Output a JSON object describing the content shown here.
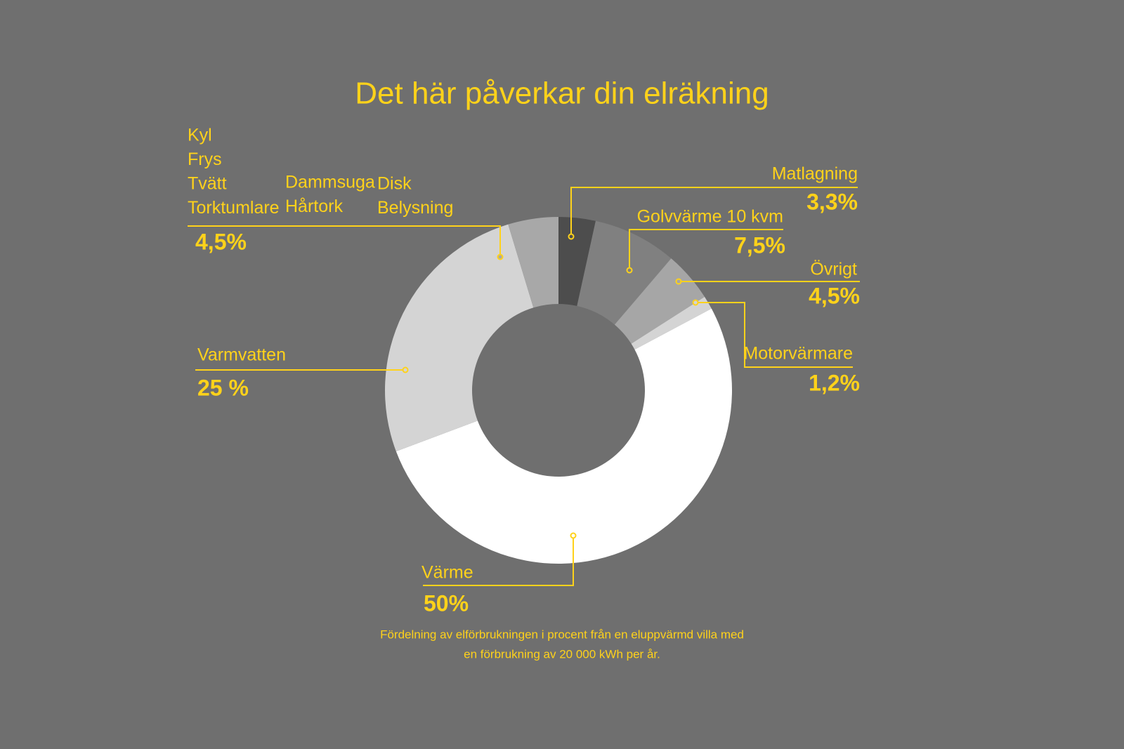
{
  "chart_data": {
    "type": "donut",
    "title": "Det här påverkar din elräkning",
    "caption": [
      "Fördelning av elförbrukningen i procent från en eluppvärmd villa med",
      "en förbrukning av 20 000 kWh per år."
    ],
    "categories": [
      "Matlagning",
      "Golvvärme 10 kvm",
      "Övrigt",
      "Motorvärmare",
      "Värme",
      "Varmvatten",
      null
    ],
    "group_labels": [
      [
        "Kyl",
        "Frys",
        "Tvätt",
        "Torktumlare"
      ],
      [
        "Dammsuga",
        "Hårtork"
      ],
      [
        "Disk",
        "Belysning"
      ]
    ],
    "values": [
      3.3,
      7.5,
      4.5,
      1.2,
      50,
      25,
      4.5
    ],
    "value_labels": [
      "3,3%",
      "7,5%",
      "4,5%",
      "1,2%",
      "50%",
      "25 %",
      "4,5%"
    ],
    "colors": [
      "#4d4d4d",
      "#808080",
      "#a6a6a6",
      "#d4d4d4",
      "#ffffff",
      "#d4d4d4",
      "#a8a8a8"
    ]
  }
}
